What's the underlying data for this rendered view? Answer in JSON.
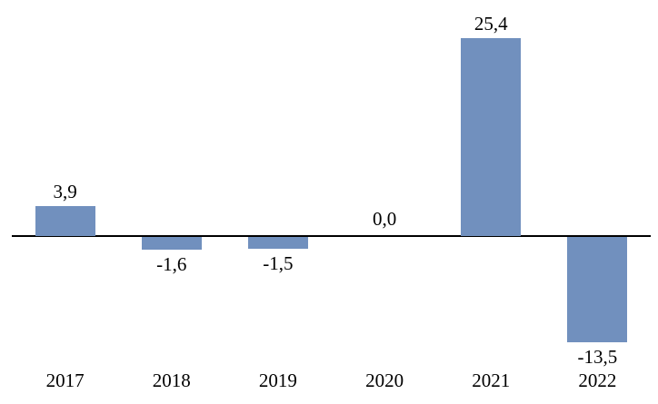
{
  "chart_data": {
    "type": "bar",
    "title": "",
    "xlabel": "",
    "ylabel": "",
    "categories": [
      "2017",
      "2018",
      "2019",
      "2020",
      "2021",
      "2022"
    ],
    "values": [
      3.9,
      -1.6,
      -1.5,
      0.0,
      25.4,
      -13.5
    ],
    "value_labels": [
      "3,9",
      "-1,6",
      "-1,5",
      "0,0",
      "25,4",
      "-13,5"
    ],
    "ylim": [
      -16,
      26
    ],
    "grid": false,
    "legend": false,
    "decimal_separator": ",",
    "colors": {
      "bar": "#7190BE",
      "axis": "#000000",
      "text": "#000000",
      "background": "#FFFFFF"
    }
  }
}
